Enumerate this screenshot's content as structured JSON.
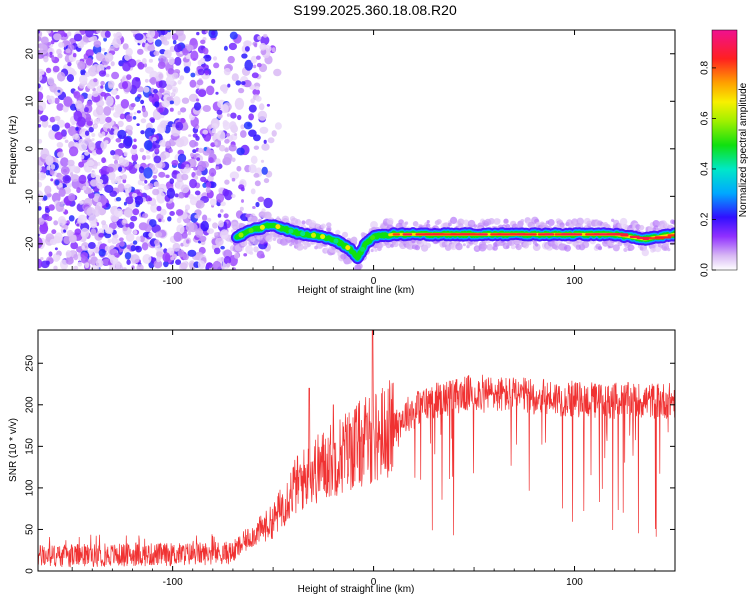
{
  "title": "S199.2025.360.18.08.R20",
  "chart_data": [
    {
      "type": "heatmap",
      "xlabel": "Height of straight line (km)",
      "ylabel": "Frequency (Hz)",
      "xlim": [
        -167,
        150
      ],
      "ylim": [
        -25.5,
        25
      ],
      "xticks": [
        "-100",
        "0",
        "100"
      ],
      "xtick_values": [
        -100,
        0,
        100
      ],
      "yticks": [
        "20",
        "10",
        "0",
        "-10",
        "-20"
      ],
      "ytick_values": [
        20,
        10,
        0,
        -10,
        -20
      ],
      "colorbar": {
        "label": "Normalized spectral amplitude",
        "range": [
          0,
          0.95
        ],
        "ticks": [
          "0.0",
          "0.2",
          "0.4",
          "0.6",
          "0.8"
        ],
        "tick_values": [
          0.0,
          0.2,
          0.4,
          0.6,
          0.8
        ]
      },
      "ridge": {
        "x": [
          -68,
          -60,
          -50,
          -40,
          -33,
          -25,
          -18,
          -12,
          -8,
          -4,
          0,
          10,
          40,
          80,
          120,
          135,
          150
        ],
        "y": [
          -18.5,
          -17,
          -16,
          -17.5,
          -18,
          -18.5,
          -19.5,
          -21,
          -23,
          -20,
          -18.5,
          -18,
          -18,
          -18,
          -18,
          -19,
          -18
        ]
      }
    },
    {
      "type": "line",
      "xlabel": "Height of straight line (km)",
      "ylabel": "SNR (10 * v/v)",
      "xlim": [
        -167,
        150
      ],
      "ylim": [
        0,
        290
      ],
      "xticks": [
        "-100",
        "0",
        "100"
      ],
      "xtick_values": [
        -100,
        0,
        100
      ],
      "yticks": [
        "0",
        "50",
        "100",
        "150",
        "200",
        "250"
      ],
      "ytick_values": [
        0,
        50,
        100,
        150,
        200,
        250
      ],
      "color": "#f03232",
      "envelope": {
        "x": [
          -167,
          -100,
          -70,
          -62,
          -50,
          -40,
          -30,
          -20,
          -10,
          0,
          10,
          20,
          30,
          50,
          80,
          110,
          130,
          150
        ],
        "y": [
          18,
          20,
          22,
          40,
          60,
          100,
          120,
          135,
          150,
          160,
          175,
          195,
          205,
          215,
          210,
          205,
          205,
          205
        ]
      },
      "spikes": [
        {
          "x": -0.5,
          "y": 290
        },
        {
          "x": -32,
          "y": 220
        },
        {
          "x": -20,
          "y": 200
        }
      ]
    }
  ]
}
